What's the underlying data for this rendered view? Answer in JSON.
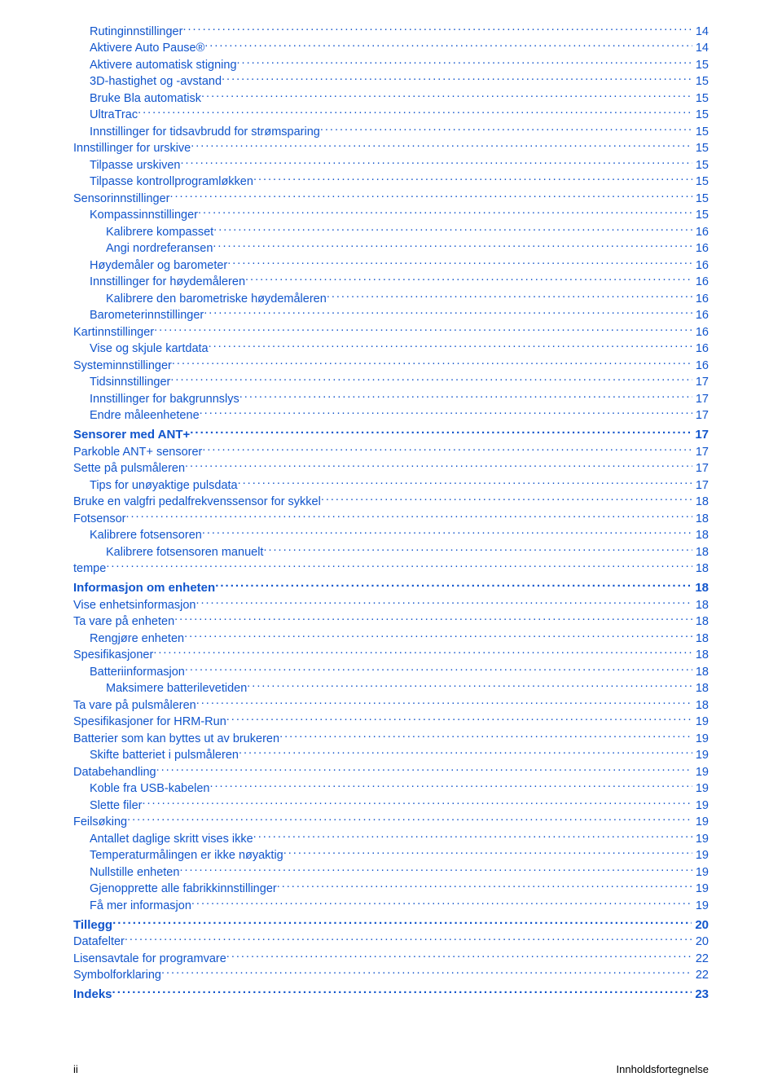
{
  "colors": {
    "link": "#1155cc",
    "bold_link": "#1155cc",
    "footer_text": "#000000",
    "body_bg": "#ffffff"
  },
  "typography": {
    "normal_fontsize": 14.5,
    "bold_fontsize": 15,
    "line_height": 20,
    "font_family": "Arial, Helvetica, sans-serif"
  },
  "toc": [
    {
      "label": "Rutinginnstillinger",
      "page": "14",
      "level": 2,
      "bold": false
    },
    {
      "label": "Aktivere Auto Pause®",
      "page": "14",
      "level": 2,
      "bold": false
    },
    {
      "label": "Aktivere automatisk stigning",
      "page": "15",
      "level": 2,
      "bold": false
    },
    {
      "label": "3D-hastighet og -avstand",
      "page": "15",
      "level": 2,
      "bold": false
    },
    {
      "label": "Bruke Bla automatisk",
      "page": "15",
      "level": 2,
      "bold": false
    },
    {
      "label": "UltraTrac",
      "page": "15",
      "level": 2,
      "bold": false
    },
    {
      "label": "Innstillinger for tidsavbrudd for strømsparing",
      "page": "15",
      "level": 2,
      "bold": false
    },
    {
      "label": "Innstillinger for urskive",
      "page": "15",
      "level": 1,
      "bold": false
    },
    {
      "label": "Tilpasse urskiven",
      "page": "15",
      "level": 2,
      "bold": false
    },
    {
      "label": "Tilpasse kontrollprogramløkken",
      "page": "15",
      "level": 2,
      "bold": false
    },
    {
      "label": "Sensorinnstillinger",
      "page": "15",
      "level": 1,
      "bold": false
    },
    {
      "label": "Kompassinnstillinger",
      "page": "15",
      "level": 2,
      "bold": false
    },
    {
      "label": "Kalibrere kompasset",
      "page": "16",
      "level": 3,
      "bold": false
    },
    {
      "label": "Angi nordreferansen",
      "page": "16",
      "level": 3,
      "bold": false
    },
    {
      "label": "Høydemåler og barometer",
      "page": "16",
      "level": 2,
      "bold": false
    },
    {
      "label": "Innstillinger for høydemåleren",
      "page": "16",
      "level": 2,
      "bold": false
    },
    {
      "label": "Kalibrere den barometriske høydemåleren",
      "page": "16",
      "level": 3,
      "bold": false
    },
    {
      "label": "Barometerinnstillinger",
      "page": "16",
      "level": 2,
      "bold": false
    },
    {
      "label": "Kartinnstillinger",
      "page": "16",
      "level": 1,
      "bold": false
    },
    {
      "label": "Vise og skjule kartdata",
      "page": "16",
      "level": 2,
      "bold": false
    },
    {
      "label": "Systeminnstillinger",
      "page": "16",
      "level": 1,
      "bold": false
    },
    {
      "label": "Tidsinnstillinger",
      "page": "17",
      "level": 2,
      "bold": false
    },
    {
      "label": "Innstillinger for bakgrunnslys",
      "page": "17",
      "level": 2,
      "bold": false
    },
    {
      "label": "Endre måleenhetene",
      "page": "17",
      "level": 2,
      "bold": false
    },
    {
      "label": "Sensorer med ANT+",
      "page": "17",
      "level": 0,
      "bold": true
    },
    {
      "label": "Parkoble ANT+ sensorer",
      "page": "17",
      "level": 1,
      "bold": false
    },
    {
      "label": "Sette på pulsmåleren",
      "page": "17",
      "level": 1,
      "bold": false
    },
    {
      "label": "Tips for unøyaktige pulsdata",
      "page": "17",
      "level": 2,
      "bold": false
    },
    {
      "label": "Bruke en valgfri pedalfrekvenssensor for sykkel",
      "page": "18",
      "level": 1,
      "bold": false
    },
    {
      "label": "Fotsensor",
      "page": "18",
      "level": 1,
      "bold": false
    },
    {
      "label": "Kalibrere fotsensoren",
      "page": "18",
      "level": 2,
      "bold": false
    },
    {
      "label": "Kalibrere fotsensoren manuelt",
      "page": "18",
      "level": 3,
      "bold": false
    },
    {
      "label": "tempe",
      "page": "18",
      "level": 1,
      "bold": false
    },
    {
      "label": "Informasjon om enheten",
      "page": "18",
      "level": 0,
      "bold": true
    },
    {
      "label": "Vise enhetsinformasjon",
      "page": "18",
      "level": 1,
      "bold": false
    },
    {
      "label": "Ta vare på enheten",
      "page": "18",
      "level": 1,
      "bold": false
    },
    {
      "label": "Rengjøre enheten",
      "page": "18",
      "level": 2,
      "bold": false
    },
    {
      "label": "Spesifikasjoner",
      "page": "18",
      "level": 1,
      "bold": false
    },
    {
      "label": "Batteriinformasjon",
      "page": "18",
      "level": 2,
      "bold": false
    },
    {
      "label": "Maksimere batterilevetiden",
      "page": "18",
      "level": 3,
      "bold": false
    },
    {
      "label": "Ta vare på pulsmåleren",
      "page": "18",
      "level": 1,
      "bold": false
    },
    {
      "label": "Spesifikasjoner for HRM-Run",
      "page": "19",
      "level": 1,
      "bold": false
    },
    {
      "label": "Batterier som kan byttes ut av brukeren",
      "page": "19",
      "level": 1,
      "bold": false
    },
    {
      "label": "Skifte batteriet i pulsmåleren",
      "page": "19",
      "level": 2,
      "bold": false
    },
    {
      "label": "Databehandling",
      "page": "19",
      "level": 1,
      "bold": false
    },
    {
      "label": "Koble fra USB-kabelen",
      "page": "19",
      "level": 2,
      "bold": false
    },
    {
      "label": "Slette filer",
      "page": "19",
      "level": 2,
      "bold": false
    },
    {
      "label": "Feilsøking",
      "page": "19",
      "level": 1,
      "bold": false
    },
    {
      "label": "Antallet daglige skritt vises ikke",
      "page": "19",
      "level": 2,
      "bold": false
    },
    {
      "label": "Temperaturmålingen er ikke nøyaktig",
      "page": "19",
      "level": 2,
      "bold": false
    },
    {
      "label": "Nullstille enheten",
      "page": "19",
      "level": 2,
      "bold": false
    },
    {
      "label": "Gjenopprette alle fabrikkinnstillinger",
      "page": "19",
      "level": 2,
      "bold": false
    },
    {
      "label": "Få mer informasjon",
      "page": "19",
      "level": 2,
      "bold": false
    },
    {
      "label": "Tillegg",
      "page": "20",
      "level": 0,
      "bold": true
    },
    {
      "label": "Datafelter",
      "page": "20",
      "level": 1,
      "bold": false
    },
    {
      "label": "Lisensavtale for programvare",
      "page": "22",
      "level": 1,
      "bold": false
    },
    {
      "label": "Symbolforklaring",
      "page": "22",
      "level": 1,
      "bold": false
    },
    {
      "label": "Indeks",
      "page": "23",
      "level": 0,
      "bold": true
    }
  ],
  "footer": {
    "left": "ii",
    "right": "Innholdsfortegnelse"
  }
}
